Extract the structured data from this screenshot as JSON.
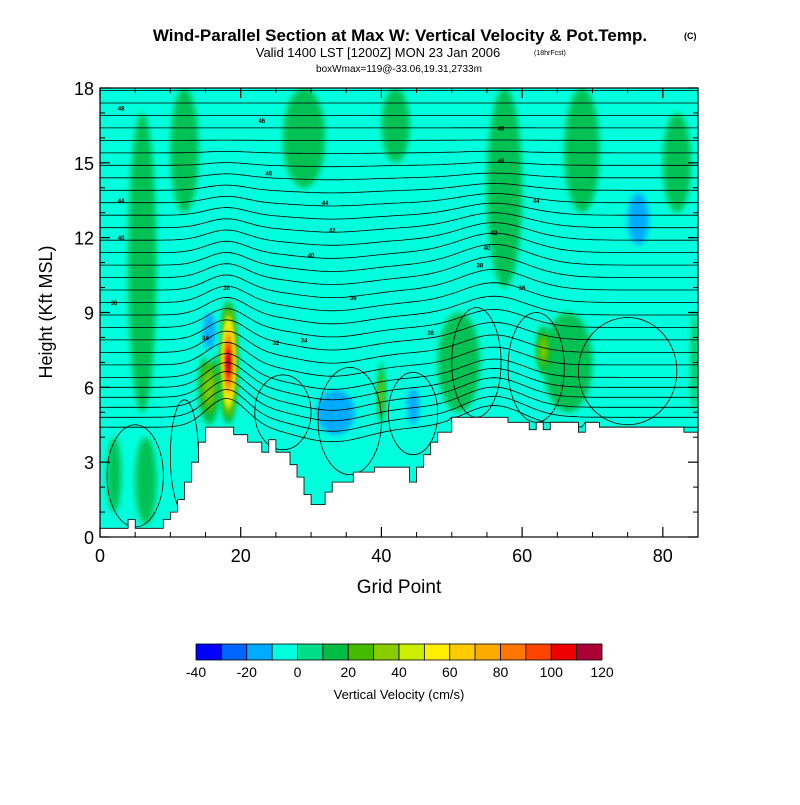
{
  "chart_data": {
    "type": "heatmap",
    "title": "Wind-Parallel Section at Max W: Vertical Velocity & Pot.Temp.",
    "title_tag": "(C)",
    "subtitle": "Valid 1400 LST [1200Z] MON 23 Jan 2006",
    "forecast_tag": "(18hrFcst)",
    "box_info": "boxWmax=119@-33.06,19.31,2733m",
    "xlabel": "Grid Point",
    "ylabel": "Height (Kft MSL)",
    "xlim": [
      0,
      85
    ],
    "ylim": [
      0,
      18
    ],
    "x_ticks": [
      "0",
      "20",
      "40",
      "60",
      "80"
    ],
    "x_tick_values": [
      0,
      20,
      40,
      60,
      80
    ],
    "y_ticks": [
      "0",
      "3",
      "6",
      "9",
      "12",
      "15",
      "18"
    ],
    "y_tick_values": [
      0,
      3,
      6,
      9,
      12,
      15,
      18
    ],
    "colorbar": {
      "label": "Vertical Velocity (cm/s)",
      "levels": [
        -40,
        -30,
        -20,
        -10,
        0,
        10,
        20,
        30,
        40,
        50,
        60,
        70,
        80,
        90,
        100,
        110,
        120
      ],
      "tick_labels": [
        "-40",
        "-20",
        "0",
        "20",
        "40",
        "60",
        "80",
        "100",
        "120"
      ],
      "tick_values": [
        -40,
        -20,
        0,
        20,
        40,
        60,
        80,
        100,
        120
      ],
      "colors": [
        "#0000ff",
        "#0066ff",
        "#00aaff",
        "#00ffdd",
        "#00dd88",
        "#00bb44",
        "#44bb00",
        "#88cc00",
        "#ccee00",
        "#ffee00",
        "#ffcc00",
        "#ffaa00",
        "#ff7700",
        "#ff4400",
        "#ee0000",
        "#aa0033"
      ]
    },
    "terrain_kft": [
      [
        0,
        0.35
      ],
      [
        4,
        0.35
      ],
      [
        4,
        0.7
      ],
      [
        5,
        0.7
      ],
      [
        5,
        0.35
      ],
      [
        9,
        0.35
      ],
      [
        9,
        0.7
      ],
      [
        10,
        0.7
      ],
      [
        10,
        1.0
      ],
      [
        11,
        1.0
      ],
      [
        11,
        1.5
      ],
      [
        12,
        1.5
      ],
      [
        12,
        2.2
      ],
      [
        13,
        2.2
      ],
      [
        13,
        3.0
      ],
      [
        14,
        3.0
      ],
      [
        14,
        3.8
      ],
      [
        15,
        3.8
      ],
      [
        15,
        4.4
      ],
      [
        19,
        4.4
      ],
      [
        19,
        4.1
      ],
      [
        21,
        4.1
      ],
      [
        21,
        3.8
      ],
      [
        23,
        3.8
      ],
      [
        23,
        3.4
      ],
      [
        24,
        3.4
      ],
      [
        24,
        3.9
      ],
      [
        25,
        3.9
      ],
      [
        25,
        3.4
      ],
      [
        27,
        3.4
      ],
      [
        27,
        2.9
      ],
      [
        28,
        2.9
      ],
      [
        28,
        2.4
      ],
      [
        29,
        2.4
      ],
      [
        29,
        1.7
      ],
      [
        30,
        1.7
      ],
      [
        30,
        1.3
      ],
      [
        32,
        1.3
      ],
      [
        32,
        1.8
      ],
      [
        33,
        1.8
      ],
      [
        33,
        2.2
      ],
      [
        36,
        2.2
      ],
      [
        36,
        2.6
      ],
      [
        39,
        2.6
      ],
      [
        39,
        2.8
      ],
      [
        44,
        2.8
      ],
      [
        44,
        2.2
      ],
      [
        45,
        2.2
      ],
      [
        45,
        2.8
      ],
      [
        46,
        2.8
      ],
      [
        46,
        3.3
      ],
      [
        47,
        3.3
      ],
      [
        47,
        3.8
      ],
      [
        48,
        3.8
      ],
      [
        48,
        4.2
      ],
      [
        50,
        4.2
      ],
      [
        50,
        4.8
      ],
      [
        58,
        4.8
      ],
      [
        58,
        4.6
      ],
      [
        61,
        4.6
      ],
      [
        61,
        4.3
      ],
      [
        62,
        4.3
      ],
      [
        62,
        4.6
      ],
      [
        63,
        4.6
      ],
      [
        63,
        4.3
      ],
      [
        64,
        4.3
      ],
      [
        64,
        4.6
      ],
      [
        68,
        4.6
      ],
      [
        68,
        4.2
      ],
      [
        69,
        4.2
      ],
      [
        69,
        4.6
      ],
      [
        71,
        4.6
      ],
      [
        71,
        4.4
      ],
      [
        83,
        4.4
      ],
      [
        83,
        4.2
      ],
      [
        85,
        4.2
      ]
    ],
    "velocity_features": [
      {
        "x": [
          17,
          19.5
        ],
        "y": [
          4.5,
          9.5
        ],
        "peak": 119,
        "note": "max updraft core"
      },
      {
        "x": [
          14,
          17
        ],
        "y": [
          4.5,
          7.5
        ],
        "peak": 30
      },
      {
        "x": [
          39.5,
          40.5
        ],
        "y": [
          4.5,
          7.0
        ],
        "peak": 35
      },
      {
        "x": [
          62,
          64
        ],
        "y": [
          6.5,
          8.5
        ],
        "peak": 30
      },
      {
        "x": [
          29,
          38
        ],
        "y": [
          3.5,
          6.5
        ],
        "peak": -20,
        "note": "downdraft"
      },
      {
        "x": [
          43,
          46
        ],
        "y": [
          4.0,
          6.5
        ],
        "peak": -20
      },
      {
        "x": [
          74,
          79
        ],
        "y": [
          11.0,
          14.5
        ],
        "peak": -20
      },
      {
        "x": [
          14,
          17
        ],
        "y": [
          7.0,
          9.5
        ],
        "peak": -20
      }
    ],
    "theta_labels": [
      {
        "text": "48",
        "x": 3,
        "y": 17.2
      },
      {
        "text": "46",
        "x": 23,
        "y": 16.7
      },
      {
        "text": "48",
        "x": 57,
        "y": 16.4
      },
      {
        "text": "46",
        "x": 24,
        "y": 14.6
      },
      {
        "text": "46",
        "x": 57,
        "y": 15.1
      },
      {
        "text": "44",
        "x": 3,
        "y": 13.5
      },
      {
        "text": "44",
        "x": 32,
        "y": 13.4
      },
      {
        "text": "44",
        "x": 62,
        "y": 13.5
      },
      {
        "text": "42",
        "x": 33,
        "y": 12.3
      },
      {
        "text": "42",
        "x": 56,
        "y": 12.2
      },
      {
        "text": "40",
        "x": 3,
        "y": 12.0
      },
      {
        "text": "40",
        "x": 30,
        "y": 11.3
      },
      {
        "text": "40",
        "x": 55,
        "y": 11.6
      },
      {
        "text": "38",
        "x": 54,
        "y": 10.9
      },
      {
        "text": "36",
        "x": 2,
        "y": 9.4
      },
      {
        "text": "36",
        "x": 36,
        "y": 9.6
      },
      {
        "text": "36",
        "x": 60,
        "y": 10.0
      },
      {
        "text": "36",
        "x": 18,
        "y": 10.0
      },
      {
        "text": "34",
        "x": 15,
        "y": 8.0
      },
      {
        "text": "36",
        "x": 47,
        "y": 8.2
      },
      {
        "text": "32",
        "x": 25,
        "y": 7.8
      },
      {
        "text": "34",
        "x": 29,
        "y": 7.9
      }
    ]
  }
}
